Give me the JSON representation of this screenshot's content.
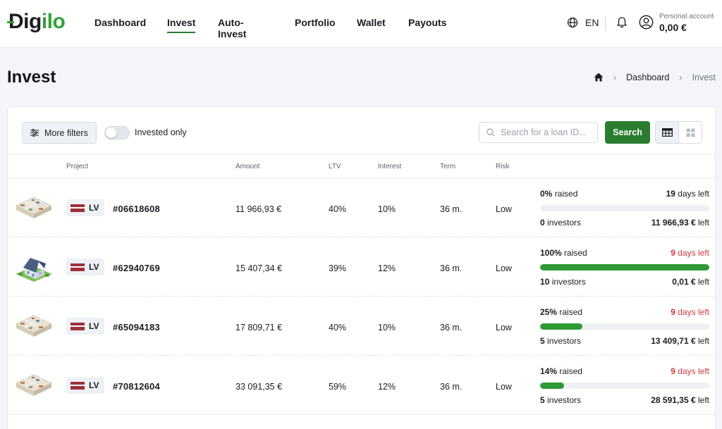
{
  "header": {
    "logo": {
      "prefix": "Dig",
      "accent": "ilo"
    },
    "nav": [
      {
        "label": "Dashboard",
        "active": false
      },
      {
        "label": "Invest",
        "active": true
      },
      {
        "label": "Auto-Invest",
        "active": false
      },
      {
        "label": "Portfolio",
        "active": false
      },
      {
        "label": "Wallet",
        "active": false
      },
      {
        "label": "Payouts",
        "active": false
      }
    ],
    "language": "EN",
    "account": {
      "label": "Personal account",
      "balance": "0,00 €"
    }
  },
  "page": {
    "title": "Invest",
    "breadcrumb": [
      "Dashboard",
      "Invest"
    ]
  },
  "toolbar": {
    "more_filters_label": "More filters",
    "invested_only_label": "Invested only",
    "invested_only_on": false,
    "search_placeholder": "Search for a loan ID...",
    "search_button_label": "Search",
    "view_mode": "table"
  },
  "table": {
    "columns": {
      "project": "Project",
      "amount": "Amount",
      "ltv": "LTV",
      "interest": "Interest",
      "term": "Term",
      "risk": "Risk"
    },
    "rows": [
      {
        "image": "apartment-floorplan",
        "country": "LV",
        "loan_id": "#06618608",
        "amount": "11 966,93 €",
        "ltv": "40%",
        "interest": "10%",
        "term": "36 m.",
        "risk": "Low",
        "raised_pct": "0%",
        "raised_label": "raised",
        "raised_fraction": 0.0,
        "days": "19",
        "days_label": "days left",
        "days_urgent": false,
        "investors": "0",
        "investors_label": "investors",
        "left_amount": "11 966,93 €",
        "left_label": "left"
      },
      {
        "image": "house",
        "country": "LV",
        "loan_id": "#62940769",
        "amount": "15 407,34 €",
        "ltv": "39%",
        "interest": "12%",
        "term": "36 m.",
        "risk": "Low",
        "raised_pct": "100%",
        "raised_label": "raised",
        "raised_fraction": 1.0,
        "days": "9",
        "days_label": "days left",
        "days_urgent": true,
        "investors": "10",
        "investors_label": "investors",
        "left_amount": "0,01 €",
        "left_label": "left"
      },
      {
        "image": "apartment-floorplan",
        "country": "LV",
        "loan_id": "#65094183",
        "amount": "17 809,71 €",
        "ltv": "40%",
        "interest": "10%",
        "term": "36 m.",
        "risk": "Low",
        "raised_pct": "25%",
        "raised_label": "raised",
        "raised_fraction": 0.25,
        "days": "9",
        "days_label": "days left",
        "days_urgent": true,
        "investors": "5",
        "investors_label": "investors",
        "left_amount": "13 409,71 €",
        "left_label": "left"
      },
      {
        "image": "apartment-floorplan",
        "country": "LV",
        "loan_id": "#70812604",
        "amount": "33 091,35 €",
        "ltv": "59%",
        "interest": "12%",
        "term": "36 m.",
        "risk": "Low",
        "raised_pct": "14%",
        "raised_label": "raised",
        "raised_fraction": 0.14,
        "days": "9",
        "days_label": "days left",
        "days_urgent": true,
        "investors": "5",
        "investors_label": "investors",
        "left_amount": "28 591,35 €",
        "left_label": "left"
      }
    ]
  },
  "colors": {
    "brand_green": "#2a7d2e",
    "progress_green": "#2f9a34",
    "urgent_red": "#d13a3a",
    "flag_red": "#9e3039"
  }
}
